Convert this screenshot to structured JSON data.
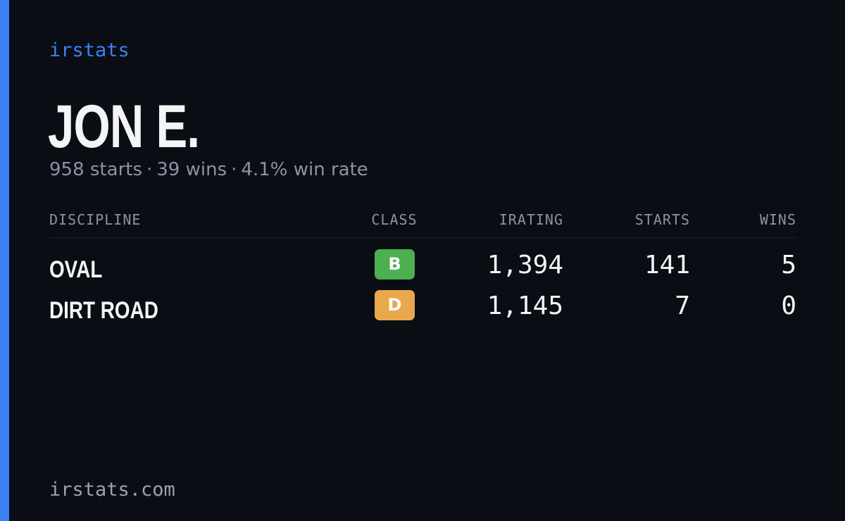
{
  "brand": "irstats",
  "driver": {
    "name": "JON E.",
    "starts_text": "958 starts",
    "wins_text": "39 wins",
    "winrate_text": "4.1% win rate",
    "separator": "·"
  },
  "table": {
    "headers": {
      "discipline": "DISCIPLINE",
      "class": "CLASS",
      "irating": "IRATING",
      "starts": "STARTS",
      "wins": "WINS"
    },
    "rows": [
      {
        "discipline": "OVAL",
        "class": "B",
        "class_color": "#4caf50",
        "irating": "1,394",
        "starts": "141",
        "wins": "5"
      },
      {
        "discipline": "DIRT ROAD",
        "class": "D",
        "class_color": "#e9a84c",
        "irating": "1,145",
        "starts": "7",
        "wins": "0"
      }
    ]
  },
  "footer": "irstats.com",
  "colors": {
    "background": "#0a0d14",
    "accent": "#3b82f6",
    "text": "#f3f4f6",
    "muted": "#8a93a6"
  }
}
